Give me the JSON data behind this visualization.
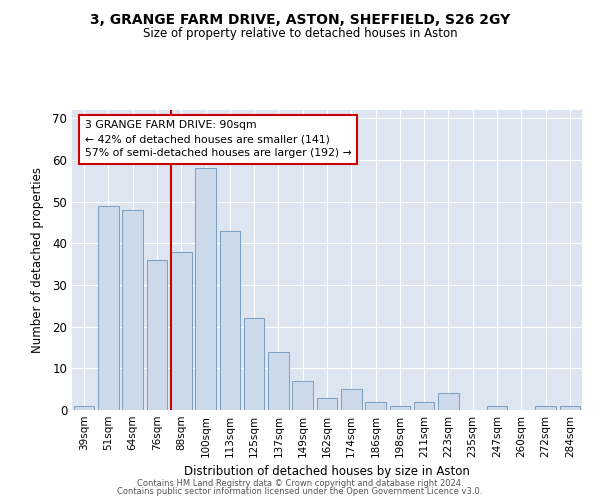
{
  "title": "3, GRANGE FARM DRIVE, ASTON, SHEFFIELD, S26 2GY",
  "subtitle": "Size of property relative to detached houses in Aston",
  "xlabel": "Distribution of detached houses by size in Aston",
  "ylabel": "Number of detached properties",
  "bar_color": "#ccd9ea",
  "bar_edge_color": "#7a9fc0",
  "background_color": "#dde5f0",
  "categories": [
    "39sqm",
    "51sqm",
    "64sqm",
    "76sqm",
    "88sqm",
    "100sqm",
    "113sqm",
    "125sqm",
    "137sqm",
    "149sqm",
    "162sqm",
    "174sqm",
    "186sqm",
    "198sqm",
    "211sqm",
    "223sqm",
    "235sqm",
    "247sqm",
    "260sqm",
    "272sqm",
    "284sqm"
  ],
  "values": [
    1,
    49,
    48,
    36,
    38,
    58,
    43,
    22,
    14,
    7,
    3,
    5,
    2,
    1,
    2,
    4,
    0,
    1,
    0,
    1,
    1
  ],
  "red_line_index": 4,
  "ylim": [
    0,
    72
  ],
  "yticks": [
    0,
    10,
    20,
    30,
    40,
    50,
    60,
    70
  ],
  "annotation_text": "3 GRANGE FARM DRIVE: 90sqm\n← 42% of detached houses are smaller (141)\n57% of semi-detached houses are larger (192) →",
  "footer1": "Contains HM Land Registry data © Crown copyright and database right 2024.",
  "footer2": "Contains public sector information licensed under the Open Government Licence v3.0."
}
